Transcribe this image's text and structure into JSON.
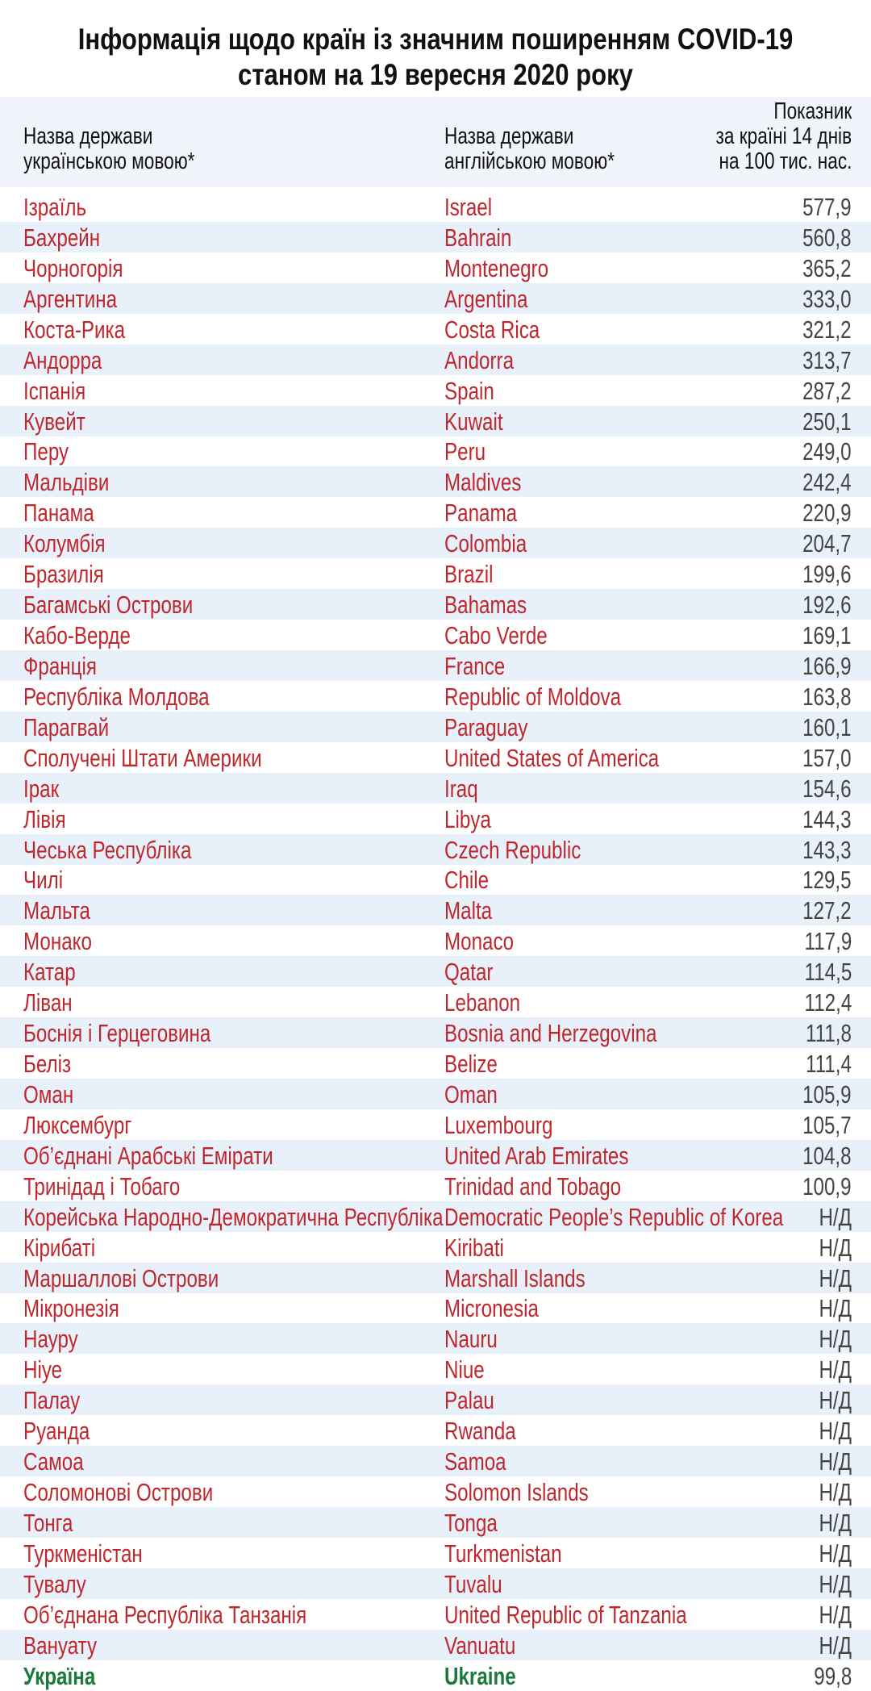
{
  "title": [
    "Інформація щодо країн із значним поширенням COVID-19",
    "станом на 19 вересня 2020 року"
  ],
  "header": [
    [
      "Назва держави",
      "українською мовою*"
    ],
    [
      "Назва держави",
      "англійською мовою*"
    ],
    [
      "Показник",
      "за країні 14 днів",
      "на 100 тис. нас."
    ]
  ],
  "rows": [
    [
      "Ізраїль",
      "Israel",
      "577,9"
    ],
    [
      "Бахрейн",
      "Bahrain",
      "560,8"
    ],
    [
      "Чорногорія",
      "Montenegro",
      "365,2"
    ],
    [
      "Аргентина",
      "Argentina",
      "333,0"
    ],
    [
      "Коста-Рика",
      "Costa Rica",
      "321,2"
    ],
    [
      "Андорра",
      "Andorra",
      "313,7"
    ],
    [
      "Іспанія",
      "Spain",
      "287,2"
    ],
    [
      "Кувейт",
      "Kuwait",
      "250,1"
    ],
    [
      "Перу",
      "Peru",
      "249,0"
    ],
    [
      "Мальдіви",
      "Maldives",
      "242,4"
    ],
    [
      "Панама",
      "Panama",
      "220,9"
    ],
    [
      "Колумбія",
      "Colombia",
      "204,7"
    ],
    [
      "Бразилія",
      "Brazil",
      "199,6"
    ],
    [
      "Багамські Острови",
      "Bahamas",
      "192,6"
    ],
    [
      "Кабо-Верде",
      "Cabo Verde",
      "169,1"
    ],
    [
      "Франція",
      "France",
      "166,9"
    ],
    [
      "Республіка Молдова",
      "Republic of Moldova",
      "163,8"
    ],
    [
      "Парагвай",
      "Paraguay",
      "160,1"
    ],
    [
      "Сполучені Штати Америки",
      "United States of America",
      "157,0"
    ],
    [
      "Ірак",
      "Iraq",
      "154,6"
    ],
    [
      "Лівія",
      "Libya",
      "144,3"
    ],
    [
      "Чеська Республіка",
      "Czech Republic",
      "143,3"
    ],
    [
      "Чилі",
      "Chile",
      "129,5"
    ],
    [
      "Мальта",
      "Malta",
      "127,2"
    ],
    [
      "Монако",
      "Monaco",
      "117,9"
    ],
    [
      "Катар",
      "Qatar",
      "114,5"
    ],
    [
      "Ліван",
      "Lebanon",
      "112,4"
    ],
    [
      "Боснія і Герцеговина",
      "Bosnia and Herzegovina",
      "111,8"
    ],
    [
      "Беліз",
      "Belize",
      "111,4"
    ],
    [
      "Оман",
      "Oman",
      "105,9"
    ],
    [
      "Люксембург",
      "Luxembourg",
      "105,7"
    ],
    [
      "Об’єднані Арабські Емірати",
      "United Arab Emirates",
      "104,8"
    ],
    [
      "Тринідад і Тобаго",
      "Trinidad and Tobago",
      "100,9"
    ],
    [
      "Корейська Народно-Демократична Республіка",
      "Democratic People’s Republic of Korea",
      "Н/Д"
    ],
    [
      "Кірибаті",
      "Kiribati",
      "Н/Д"
    ],
    [
      "Маршаллові Острови",
      "Marshall Islands",
      "Н/Д"
    ],
    [
      "Мікронезія",
      "Micronesia",
      "Н/Д"
    ],
    [
      "Науру",
      "Nauru",
      "Н/Д"
    ],
    [
      "Ніуе",
      "Niue",
      "Н/Д"
    ],
    [
      "Палау",
      "Palau",
      "Н/Д"
    ],
    [
      "Руанда",
      "Rwanda",
      "Н/Д"
    ],
    [
      "Самоа",
      "Samoa",
      "Н/Д"
    ],
    [
      "Соломонові Острови",
      "Solomon Islands",
      "Н/Д"
    ],
    [
      "Тонга",
      "Tonga",
      "Н/Д"
    ],
    [
      "Туркменістан",
      "Turkmenistan",
      "Н/Д"
    ],
    [
      "Тувалу",
      "Tuvalu",
      "Н/Д"
    ],
    [
      "Об’єднана Республіка Танзанія",
      "United Republic of Tanzania",
      "Н/Д"
    ],
    [
      "Вануату",
      "Vanuatu",
      "Н/Д"
    ]
  ],
  "highlight_row": [
    "Україна",
    "Ukraine",
    "99,8"
  ]
}
